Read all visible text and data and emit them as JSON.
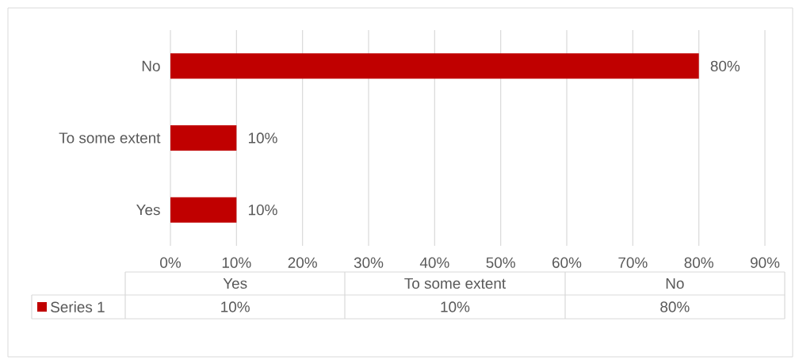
{
  "chart_data": {
    "type": "bar",
    "orientation": "horizontal",
    "categories": [
      "No",
      "To some extent",
      "Yes"
    ],
    "series": [
      {
        "name": "Series 1",
        "color": "#c00000",
        "values": [
          80,
          10,
          10
        ],
        "value_labels": [
          "80%",
          "10%",
          "10%"
        ]
      }
    ],
    "xlim": [
      0,
      90
    ],
    "xticks": [
      {
        "value": 0,
        "label": "0%"
      },
      {
        "value": 10,
        "label": "10%"
      },
      {
        "value": 20,
        "label": "20%"
      },
      {
        "value": 30,
        "label": "30%"
      },
      {
        "value": 40,
        "label": "40%"
      },
      {
        "value": 50,
        "label": "50%"
      },
      {
        "value": 60,
        "label": "60%"
      },
      {
        "value": 70,
        "label": "70%"
      },
      {
        "value": 80,
        "label": "80%"
      },
      {
        "value": 90,
        "label": "90%"
      }
    ],
    "grid": "x",
    "legend": "bottom"
  }
}
